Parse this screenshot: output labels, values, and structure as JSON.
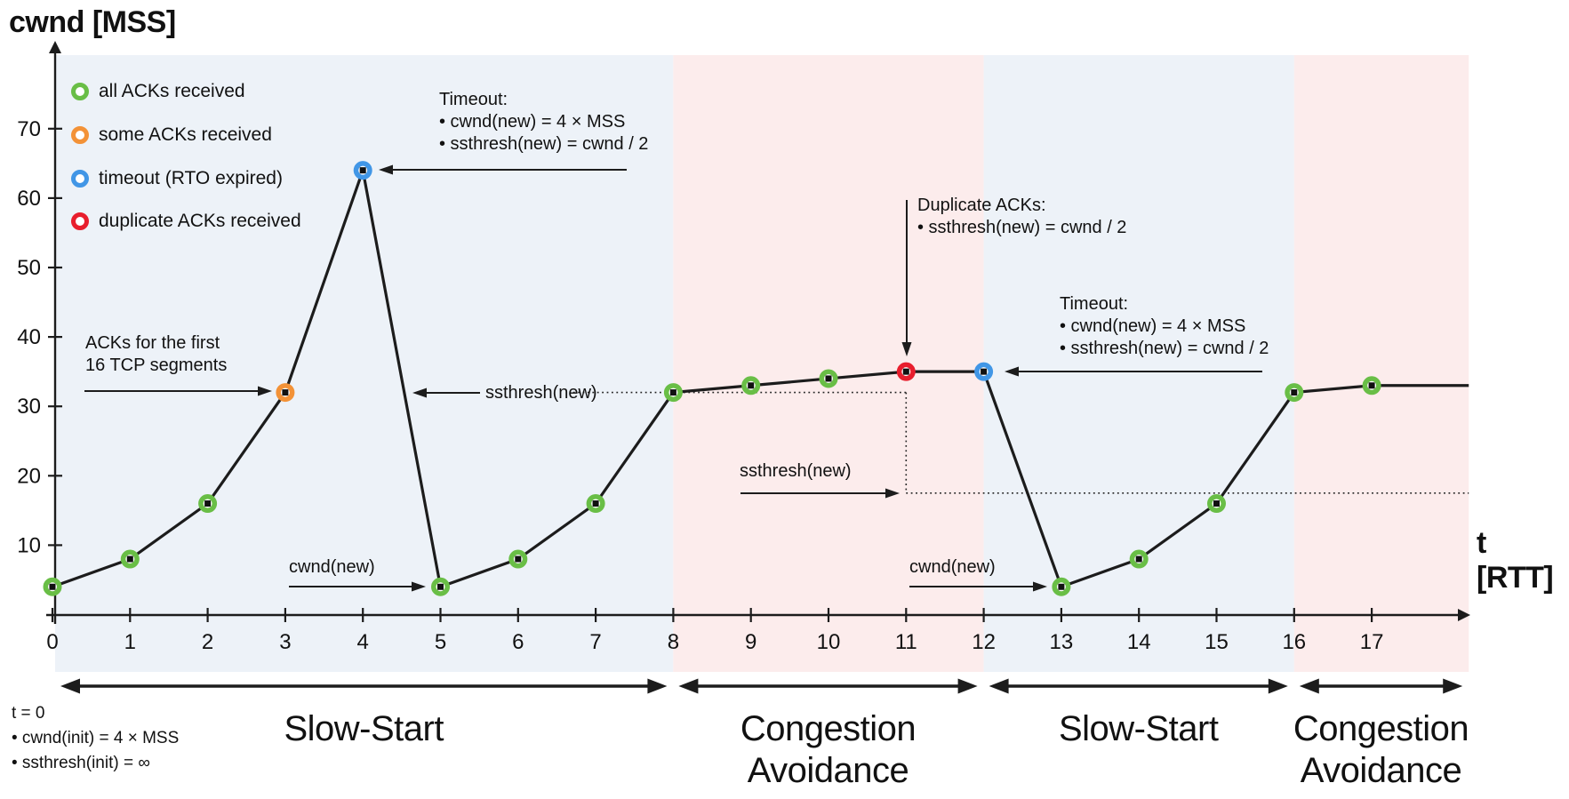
{
  "title": "cwnd [MSS]",
  "x_axis_title": "t [RTT]",
  "colors": {
    "slow_start_bg": "#edf2f8",
    "congestion_avoidance_bg": "#fcecec",
    "series_line": "#1c1c1c",
    "axis": "#1c1c1c",
    "all_acks": "#69be46",
    "some_acks": "#f39237",
    "timeout": "#4196e6",
    "duplicate_acks": "#e81e2d"
  },
  "legend": {
    "items": [
      {
        "id": "all-acks",
        "label": "all ACKs received",
        "color": "#69be46"
      },
      {
        "id": "some-acks",
        "label": "some ACKs received",
        "color": "#f39237"
      },
      {
        "id": "timeout",
        "label": "timeout (RTO expired)",
        "color": "#4196e6"
      },
      {
        "id": "duplicate-acks",
        "label": "duplicate ACKs received",
        "color": "#e81e2d"
      }
    ]
  },
  "annotations": {
    "timeout1": {
      "title": "Timeout:",
      "line1": "• cwnd(new) = 4 × MSS",
      "line2": "• ssthresh(new) = cwnd / 2"
    },
    "timeout2": {
      "title": "Timeout:",
      "line1": "• cwnd(new) = 4 × MSS",
      "line2": "• ssthresh(new) = cwnd / 2"
    },
    "duplicate_acks": {
      "title": "Duplicate ACKs:",
      "line1": "• ssthresh(new) = cwnd / 2"
    },
    "acks_first": {
      "line1": "ACKs for the first",
      "line2": "16 TCP segments"
    },
    "ssthresh_label_1": "ssthresh(new)",
    "ssthresh_label_2": "ssthresh(new)",
    "cwnd_new_label_1": "cwnd(new)",
    "cwnd_new_label_2": "cwnd(new)"
  },
  "init_note": {
    "line1": "t = 0",
    "line2": "• cwnd(init) = 4 × MSS",
    "line3": "• ssthresh(init) = ∞"
  },
  "phases": [
    {
      "label": "Slow-Start",
      "type": "slow-start",
      "t_start": 0,
      "t_end": 8
    },
    {
      "label": "Congestion Avoidance",
      "type": "congestion-avoidance",
      "t_start": 8,
      "t_end": 12
    },
    {
      "label": "Slow-Start",
      "type": "slow-start",
      "t_start": 12,
      "t_end": 16
    },
    {
      "label": "Congestion Avoidance",
      "type": "congestion-avoidance",
      "t_start": 16,
      "t_end": 18.25
    }
  ],
  "chart_data": {
    "type": "line",
    "xlabel": "t [RTT]",
    "ylabel": "cwnd [MSS]",
    "x_ticks": [
      0,
      1,
      2,
      3,
      4,
      5,
      6,
      7,
      8,
      9,
      10,
      11,
      12,
      13,
      14,
      15,
      16,
      17
    ],
    "y_ticks": [
      10,
      20,
      30,
      40,
      50,
      60,
      70
    ],
    "ylim": [
      0,
      75
    ],
    "points": [
      {
        "t": 0,
        "cwnd": 4,
        "event": "all-acks"
      },
      {
        "t": 1,
        "cwnd": 8,
        "event": "all-acks"
      },
      {
        "t": 2,
        "cwnd": 16,
        "event": "all-acks"
      },
      {
        "t": 3,
        "cwnd": 32,
        "event": "some-acks"
      },
      {
        "t": 4,
        "cwnd": 64,
        "event": "timeout"
      },
      {
        "t": 5,
        "cwnd": 4,
        "event": "all-acks"
      },
      {
        "t": 6,
        "cwnd": 8,
        "event": "all-acks"
      },
      {
        "t": 7,
        "cwnd": 16,
        "event": "all-acks"
      },
      {
        "t": 8,
        "cwnd": 32,
        "event": "all-acks"
      },
      {
        "t": 9,
        "cwnd": 33,
        "event": "all-acks"
      },
      {
        "t": 10,
        "cwnd": 34,
        "event": "all-acks"
      },
      {
        "t": 11,
        "cwnd": 35,
        "event": "duplicate-acks"
      },
      {
        "t": 12,
        "cwnd": 35,
        "event": "timeout"
      },
      {
        "t": 13,
        "cwnd": 4,
        "event": "all-acks"
      },
      {
        "t": 14,
        "cwnd": 8,
        "event": "all-acks"
      },
      {
        "t": 15,
        "cwnd": 16,
        "event": "all-acks"
      },
      {
        "t": 16,
        "cwnd": 32,
        "event": "all-acks"
      },
      {
        "t": 17,
        "cwnd": 33,
        "event": "all-acks"
      }
    ],
    "line_tail_t": 18.25,
    "ssthresh_guides": [
      {
        "value": 32,
        "t_from": 6.71,
        "t_to": 11
      },
      {
        "value": 17.5,
        "t_from": 11,
        "t_to": 18.25
      }
    ],
    "ssthresh_vertical_drop": {
      "t": 11,
      "value_from": 32,
      "value_to": 17.5
    }
  }
}
